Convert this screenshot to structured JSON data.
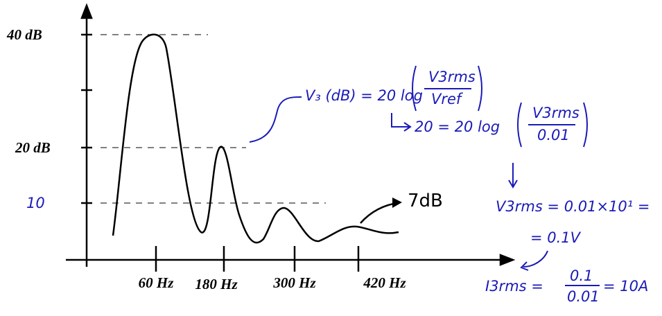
{
  "axis": {
    "y_labels": [
      "40 dB",
      "20 dB",
      "10"
    ],
    "x_labels": [
      "60 Hz",
      "180 Hz",
      "300 Hz",
      "420 Hz"
    ]
  },
  "peak_note": "7dB",
  "notes": {
    "eq1": {
      "lhs": "V₃ (dB) = 20 log",
      "num": "V3rms",
      "den": "Vref"
    },
    "eq2": {
      "lhs": "20 = 20 log",
      "num": "V3rms",
      "den": "0.01"
    },
    "eq3": "V3rms = 0.01×10¹ =",
    "eq4": "= 0.1V",
    "eq5": {
      "lhs": "I3rms =",
      "num": "0.1",
      "den": "0.01",
      "rhs": "= 10A"
    }
  }
}
